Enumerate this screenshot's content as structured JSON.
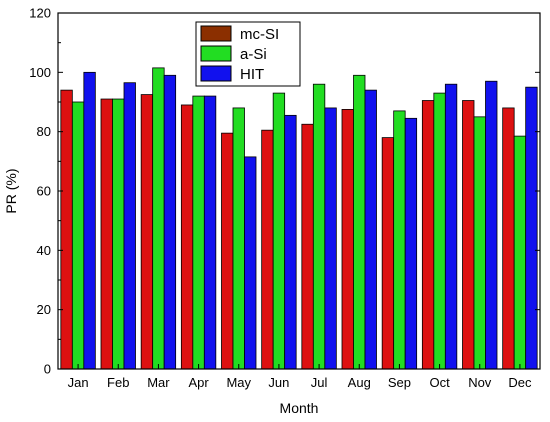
{
  "chart_data": {
    "type": "bar",
    "title": "",
    "xlabel": "Month",
    "ylabel": "PR (%)",
    "ylim": [
      0,
      120
    ],
    "yticks": [
      "0",
      "20",
      "40",
      "60",
      "80",
      "100",
      "120"
    ],
    "categories": [
      "Jan",
      "Feb",
      "Mar",
      "Apr",
      "May",
      "Jun",
      "Jul",
      "Aug",
      "Sep",
      "Oct",
      "Nov",
      "Dec"
    ],
    "series": [
      {
        "name": "mc-SI",
        "color": "#dd1111",
        "legend_color": "#8b2f00",
        "values": [
          94,
          91,
          92.5,
          89,
          79.5,
          80.5,
          82.5,
          87.5,
          78,
          90.5,
          90.5,
          88
        ]
      },
      {
        "name": "a-Si",
        "color": "#22dd22",
        "values": [
          90,
          91,
          101.5,
          92,
          88,
          93,
          96,
          99,
          87,
          93,
          85,
          78.5
        ]
      },
      {
        "name": "HIT",
        "color": "#1111ee",
        "values": [
          100,
          96.5,
          99,
          92,
          71.5,
          85.5,
          88,
          94,
          84.5,
          96,
          97,
          95
        ]
      }
    ],
    "legend_position": "top-center",
    "grid": false
  }
}
